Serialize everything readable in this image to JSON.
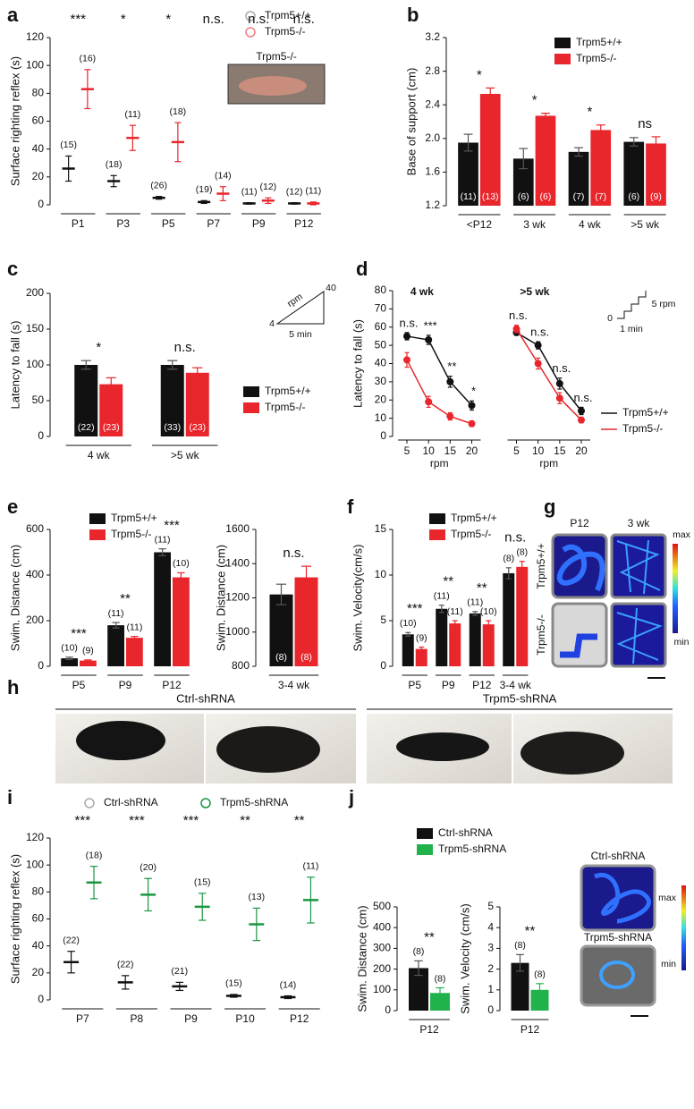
{
  "chart_data": [
    {
      "type": "dotplot",
      "panel": "a",
      "ylabel": "Surface righting reflex (s)",
      "categories": [
        "P1",
        "P3",
        "P5",
        "P7",
        "P9",
        "P12"
      ],
      "ylim": [
        0,
        120
      ],
      "yticks": [
        0,
        20,
        40,
        60,
        80,
        100,
        120
      ],
      "series": [
        {
          "name": "Trpm5+/+",
          "color": "#111111",
          "marker_color": "#aaaaaa",
          "values": [
            26,
            17,
            5,
            2,
            1,
            1
          ],
          "errors": [
            9,
            4,
            1,
            1,
            0.5,
            0.5
          ],
          "n_labels": [
            "(15)",
            "(18)",
            "(26)",
            "(19)",
            "(11)",
            "(12)"
          ]
        },
        {
          "name": "Trpm5-/-",
          "color": "#e8262b",
          "marker_color": "#f08080",
          "values": [
            83,
            48,
            45,
            8,
            3,
            1
          ],
          "errors": [
            14,
            9,
            14,
            5,
            2,
            1
          ],
          "n_labels": [
            "(16)",
            "(11)",
            "(18)",
            "(14)",
            "(12)",
            "(11)"
          ]
        }
      ],
      "significance": [
        "***",
        "*",
        "*",
        "n.s.",
        "n.s.",
        "n.s."
      ],
      "inset_label": "Trpm5-/-"
    },
    {
      "type": "bar",
      "panel": "b",
      "ylabel": "Base of support (cm)",
      "categories": [
        "<P12",
        "3 wk",
        "4 wk",
        ">5 wk"
      ],
      "ylim": [
        1.2,
        3.2
      ],
      "yticks": [
        1.2,
        1.6,
        {
          "value": 2,
          "label": "2.0"
        },
        2.4,
        2.8,
        3.2
      ],
      "n_label_position": "inside",
      "series": [
        {
          "name": "Trpm5+/+",
          "color": "#111111",
          "values": [
            1.95,
            1.76,
            1.84,
            1.96
          ],
          "errors": [
            0.1,
            0.12,
            0.05,
            0.05
          ],
          "n_labels": [
            "(11)",
            "(6)",
            "(7)",
            "(6)"
          ]
        },
        {
          "name": "Trpm5-/-",
          "color": "#e8262b",
          "values": [
            2.53,
            2.27,
            2.1,
            1.94
          ],
          "errors": [
            0.07,
            0.03,
            0.06,
            0.08
          ],
          "n_labels": [
            "(13)",
            "(6)",
            "(7)",
            "(9)"
          ]
        }
      ],
      "significance": [
        "*",
        "*",
        "*",
        "ns"
      ]
    },
    {
      "type": "bar",
      "panel": "c",
      "ylabel": "Latency to fall (s)",
      "categories": [
        "4 wk",
        ">5 wk"
      ],
      "ylim": [
        0,
        200
      ],
      "yticks": [
        0,
        50,
        100,
        150,
        200
      ],
      "n_label_position": "inside",
      "series": [
        {
          "name": "Trpm5+/+",
          "color": "#111111",
          "values": [
            100,
            100
          ],
          "errors": [
            6,
            6
          ],
          "n_labels": [
            "(22)",
            "(33)"
          ]
        },
        {
          "name": "Trpm5-/-",
          "color": "#e8262b",
          "values": [
            73,
            89
          ],
          "errors": [
            9,
            7
          ],
          "n_labels": [
            "(23)",
            "(23)"
          ]
        }
      ],
      "significance": [
        "*",
        "n.s."
      ],
      "inset_labels": [
        "rpm",
        "40",
        "4",
        "5 min"
      ]
    },
    {
      "type": "line",
      "panel": "d",
      "ylabel": "Latency to fall (s)",
      "xlabel": "rpm",
      "group_titles": [
        "4 wk",
        ">5 wk"
      ],
      "x": [
        5,
        10,
        15,
        20,
        5,
        10,
        15,
        20
      ],
      "xlim": [
        5,
        20
      ],
      "xticks": [
        5,
        10,
        15,
        20
      ],
      "ylim": [
        0,
        80
      ],
      "yticks": [
        0,
        10,
        20,
        30,
        40,
        50,
        60,
        70,
        80
      ],
      "series": [
        {
          "name": "Trpm5+/+",
          "color": "#111111",
          "values": [
            55,
            53,
            30,
            17,
            57,
            50,
            29,
            14
          ],
          "errors": [
            2,
            2.5,
            3,
            2.5,
            1.5,
            2,
            3,
            2
          ]
        },
        {
          "name": "Trpm5-/-",
          "color": "#e8262b",
          "values": [
            42,
            19,
            11,
            7,
            59,
            40,
            21,
            9
          ],
          "errors": [
            4,
            3,
            2,
            1.5,
            2,
            3,
            3,
            1.5
          ]
        }
      ],
      "significance": [
        "n.s.",
        "***",
        "**",
        "*",
        "n.s.",
        "n.s.",
        "n.s.",
        "n.s."
      ],
      "inset_labels": [
        "0",
        "1 min",
        "5 rpm"
      ]
    },
    {
      "type": "bar",
      "panel": "e",
      "ylabel": "Swim. Distance (cm)",
      "categories": [
        "P5",
        "P9",
        "P12"
      ],
      "ylim": [
        0,
        600
      ],
      "yticks": [
        0,
        200,
        400,
        600
      ],
      "n_label_position": "above",
      "series": [
        {
          "name": "Trpm5+/+",
          "color": "#111111",
          "values": [
            35,
            180,
            500
          ],
          "errors": [
            5,
            12,
            15
          ],
          "n_labels": [
            "(10)",
            "(11)",
            "(11)"
          ]
        },
        {
          "name": "Trpm5-/-",
          "color": "#e8262b",
          "values": [
            25,
            125,
            390
          ],
          "errors": [
            3,
            6,
            20
          ],
          "n_labels": [
            "(9)",
            "(11)",
            "(10)"
          ]
        }
      ],
      "significance": [
        "***",
        "**",
        "***"
      ]
    },
    {
      "type": "bar",
      "ylabel": "Swim. Distance (cm)",
      "categories": [
        "3-4 wk"
      ],
      "ylim": [
        800,
        1600
      ],
      "yticks": [
        800,
        1000,
        1200,
        1400,
        1600
      ],
      "n_label_position": "inside",
      "series": [
        {
          "color": "#111111",
          "values": [
            1220
          ],
          "errors": [
            60
          ],
          "n_labels": [
            "(8)"
          ]
        },
        {
          "color": "#e8262b",
          "values": [
            1320
          ],
          "errors": [
            65
          ],
          "n_labels": [
            "(8)"
          ]
        }
      ],
      "significance": [
        "n.s."
      ]
    },
    {
      "type": "bar",
      "panel": "f",
      "ylabel": "Swim. Velocity(cm/s)",
      "categories": [
        "P5",
        "P9",
        "P12",
        "3-4 wk"
      ],
      "ylim": [
        0,
        15
      ],
      "yticks": [
        0,
        5,
        10,
        15
      ],
      "n_label_position": "above",
      "series": [
        {
          "name": "Trpm5+/+",
          "color": "#111111",
          "values": [
            3.5,
            6.3,
            5.8,
            10.2
          ],
          "errors": [
            0.2,
            0.4,
            0.2,
            0.6
          ],
          "n_labels": [
            "(10)",
            "(11)",
            "(11)",
            "(8)"
          ]
        },
        {
          "name": "Trpm5-/-",
          "color": "#e8262b",
          "values": [
            1.9,
            4.7,
            4.6,
            10.9
          ],
          "errors": [
            0.2,
            0.3,
            0.4,
            0.6
          ],
          "n_labels": [
            "(9)",
            "(11)",
            "(10)",
            "(8)"
          ]
        }
      ],
      "significance": [
        "***",
        "**",
        "**",
        "n.s."
      ]
    },
    {
      "type": "dotplot",
      "panel": "i",
      "ylabel": "Surface righting reflex (s)",
      "categories": [
        "P7",
        "P8",
        "P9",
        "P10",
        "P12"
      ],
      "ylim": [
        0,
        120
      ],
      "yticks": [
        0,
        20,
        40,
        60,
        80,
        100,
        120
      ],
      "series": [
        {
          "name": "Ctrl-shRNA",
          "color": "#111111",
          "marker_color": "#aaaaaa",
          "values": [
            28,
            13,
            10,
            3,
            2
          ],
          "errors": [
            8,
            5,
            3,
            1,
            1
          ],
          "n_labels": [
            "(22)",
            "(22)",
            "(21)",
            "(15)",
            "(14)"
          ]
        },
        {
          "name": "Trpm5-shRNA",
          "color": "#1a9641",
          "marker_color": "#1a9641",
          "values": [
            87,
            78,
            69,
            56,
            74
          ],
          "errors": [
            12,
            12,
            10,
            12,
            17
          ],
          "n_labels": [
            "(18)",
            "(20)",
            "(15)",
            "(13)",
            "(11)"
          ]
        }
      ],
      "significance": [
        "***",
        "***",
        "***",
        "**",
        "**"
      ]
    },
    {
      "type": "bar",
      "panel": "j",
      "ylabel": "Swim. Distance (cm)",
      "categories": [
        "P12"
      ],
      "ylim": [
        0,
        500
      ],
      "yticks": [
        0,
        100,
        200,
        300,
        400,
        500
      ],
      "n_label_position": "above",
      "series": [
        {
          "name": "Ctrl-shRNA",
          "color": "#111111",
          "values": [
            205
          ],
          "errors": [
            35
          ],
          "n_labels": [
            "(8)"
          ]
        },
        {
          "name": "Trpm5-shRNA",
          "color": "#22b24c",
          "values": [
            85
          ],
          "errors": [
            25
          ],
          "n_labels": [
            "(8)"
          ]
        }
      ],
      "significance": [
        "**"
      ]
    },
    {
      "type": "bar",
      "ylabel": "Swim. Velocity (cm/s)",
      "categories": [
        "P12"
      ],
      "ylim": [
        0,
        5
      ],
      "yticks": [
        0,
        1,
        2,
        3,
        4,
        5
      ],
      "n_label_position": "above",
      "series": [
        {
          "color": "#111111",
          "values": [
            2.3
          ],
          "errors": [
            0.4
          ],
          "n_labels": [
            "(8)"
          ]
        },
        {
          "color": "#22b24c",
          "values": [
            1.0
          ],
          "errors": [
            0.3
          ],
          "n_labels": [
            "(8)"
          ]
        }
      ],
      "significance": [
        "**"
      ]
    }
  ],
  "images": {
    "g": {
      "panel": "g",
      "columns": [
        "P12",
        "3 wk"
      ],
      "rows": [
        "Trpm5+/+",
        "Trpm5-/-"
      ],
      "scale": [
        "max",
        "min"
      ]
    },
    "h": {
      "panel": "h",
      "groups": [
        "Ctrl-shRNA",
        "Trpm5-shRNA"
      ]
    },
    "j": {
      "rows": [
        "Ctrl-shRNA",
        "Trpm5-shRNA"
      ],
      "scale": [
        "max",
        "min"
      ]
    }
  }
}
